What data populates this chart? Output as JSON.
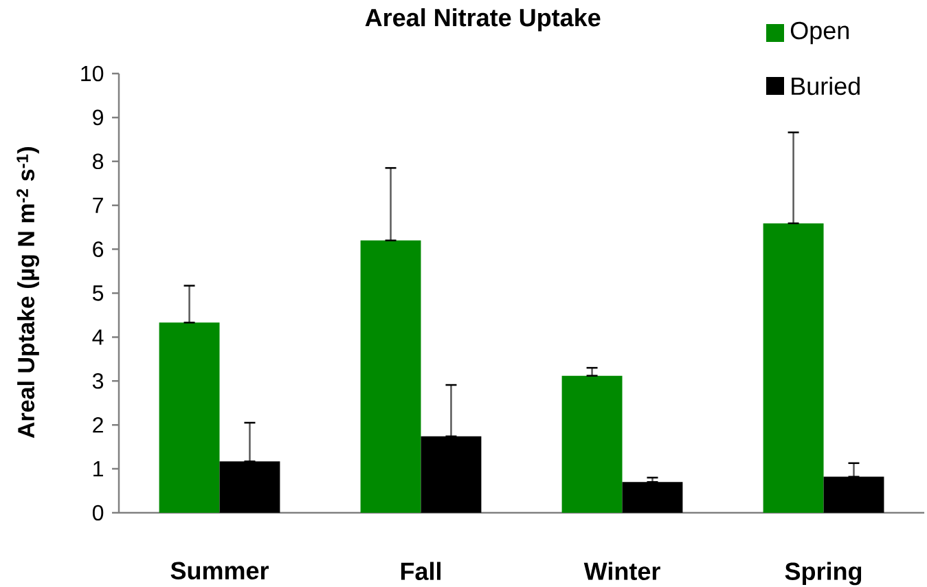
{
  "chart_data": {
    "type": "bar",
    "title": "Areal Nitrate Uptake",
    "ylabel": "Areal Uptake (µg N m$^{-2}$ s$^{-1}$)",
    "categories": [
      "Summer",
      "Fall",
      "Winter",
      "Spring"
    ],
    "series": [
      {
        "name": "Open",
        "color": "#008a00",
        "values": [
          4.33,
          6.2,
          3.12,
          6.59
        ],
        "errors": [
          [
            4.33,
            5.17
          ],
          [
            6.2,
            7.85
          ],
          [
            3.12,
            3.3
          ],
          [
            6.59,
            8.66
          ]
        ]
      },
      {
        "name": "Buried",
        "color": "#000000",
        "values": [
          1.17,
          1.74,
          0.7,
          0.82
        ],
        "errors": [
          [
            1.17,
            2.05
          ],
          [
            1.74,
            2.91
          ],
          [
            0.7,
            0.8
          ],
          [
            0.82,
            1.13
          ]
        ]
      }
    ],
    "ylim": [
      0,
      10
    ],
    "yticks": [
      0,
      1,
      2,
      3,
      4,
      5,
      6,
      7,
      8,
      9,
      10
    ],
    "legend": "top right",
    "grid": false
  }
}
